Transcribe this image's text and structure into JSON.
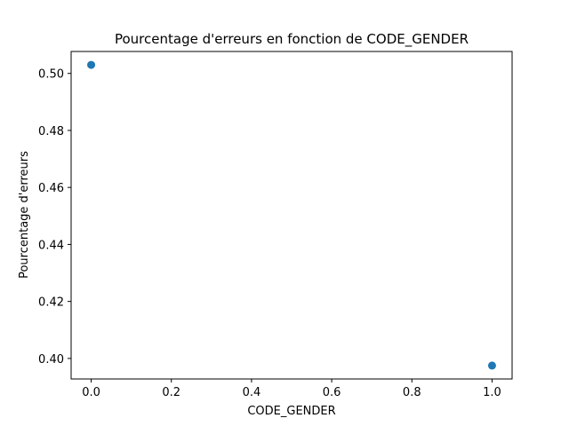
{
  "chart_data": {
    "type": "scatter",
    "title": "Pourcentage d'erreurs en fonction de CODE_GENDER",
    "xlabel": "CODE_GENDER",
    "ylabel": "Pourcentage d'erreurs",
    "x": [
      0.0,
      1.0
    ],
    "y": [
      0.503,
      0.3975
    ],
    "xlim": [
      -0.05,
      1.05
    ],
    "ylim": [
      0.3928,
      0.5077
    ],
    "xticks": [
      0.0,
      0.2,
      0.4,
      0.6,
      0.8,
      1.0
    ],
    "xtick_labels": [
      "0.0",
      "0.2",
      "0.4",
      "0.6",
      "0.8",
      "1.0"
    ],
    "yticks": [
      0.4,
      0.42,
      0.44,
      0.46,
      0.48,
      0.5
    ],
    "ytick_labels": [
      "0.40",
      "0.42",
      "0.44",
      "0.46",
      "0.48",
      "0.50"
    ],
    "grid": false,
    "marker_color": "#1f77b4"
  }
}
